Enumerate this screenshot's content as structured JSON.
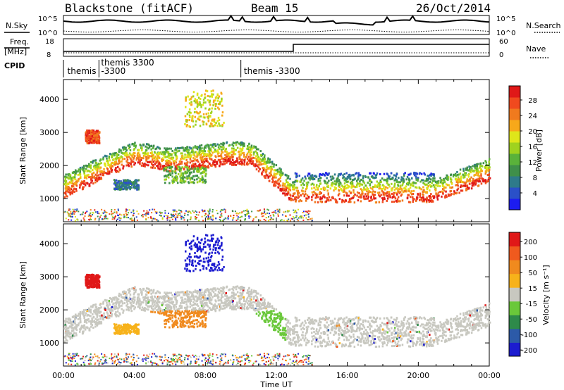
{
  "header": {
    "radar": "Blackstone (fitACF)",
    "beam": "Beam 15",
    "date": "26/Oct/2014"
  },
  "panels": {
    "nsky": {
      "label": "N.Sky",
      "ticks": [
        "10^5",
        "10^0"
      ]
    },
    "nsearch": {
      "label": "N.Search",
      "ticks_right": [
        "10^5",
        "10^0"
      ]
    },
    "freq": {
      "label_line1": "Freq.",
      "label_line2": "[MHz]",
      "ticks": [
        "18",
        "8"
      ]
    },
    "nave": {
      "label": "Nave",
      "ticks_right": [
        "60",
        "0"
      ]
    },
    "cpid": {
      "label": "CPID"
    }
  },
  "campaigns": [
    {
      "name": "themis",
      "offset": "",
      "x_hours": 0.1,
      "row": 1
    },
    {
      "name": "themis 3300",
      "offset": "-3300",
      "x_hours": 2.0,
      "row": 0
    },
    {
      "name": "themis -3300",
      "offset": "",
      "x_hours": 10.05,
      "row": 1
    }
  ],
  "campaign_boundaries_hours": [
    0.0,
    2.0,
    10.0
  ],
  "chart_data": [
    {
      "type": "heatmap",
      "name": "power",
      "ylabel": "Slant Range [km]",
      "yticks": [
        1000,
        2000,
        3000,
        4000
      ],
      "ylim": [
        300,
        4600
      ],
      "xlim": [
        0,
        24
      ],
      "colorbar": {
        "label": "Power [dB]",
        "ticks": [
          "4",
          "8",
          "12",
          "16",
          "20",
          "24",
          "28"
        ],
        "range": [
          0,
          30
        ],
        "colors": [
          "#1c1cf0",
          "#2a50c8",
          "#2e7a8a",
          "#3f8f4a",
          "#5ab23a",
          "#9fd21f",
          "#dfe61a",
          "#f7a81a",
          "#f07a1e",
          "#f04a1e",
          "#e01818"
        ]
      }
    },
    {
      "type": "heatmap",
      "name": "velocity",
      "ylabel": "Slant Range [km]",
      "yticks": [
        1000,
        2000,
        3000,
        4000
      ],
      "ylim": [
        300,
        4600
      ],
      "xlim": [
        0,
        24
      ],
      "colorbar": {
        "label": "Velocity [m s⁻¹]",
        "ticks": [
          "200",
          "100",
          "50",
          "15",
          "-15",
          "-50",
          "-100",
          "-200"
        ],
        "colors": [
          "#1c1cd0",
          "#2c5aa8",
          "#2e8a4a",
          "#6ac83a",
          "#c8c8c0",
          "#f7b21a",
          "#f08a1e",
          "#f05a1e",
          "#e01818"
        ]
      }
    }
  ],
  "xaxis": {
    "label": "Time UT",
    "ticks": [
      "00:00",
      "04:00",
      "08:00",
      "12:00",
      "16:00",
      "20:00",
      "00:00"
    ]
  }
}
